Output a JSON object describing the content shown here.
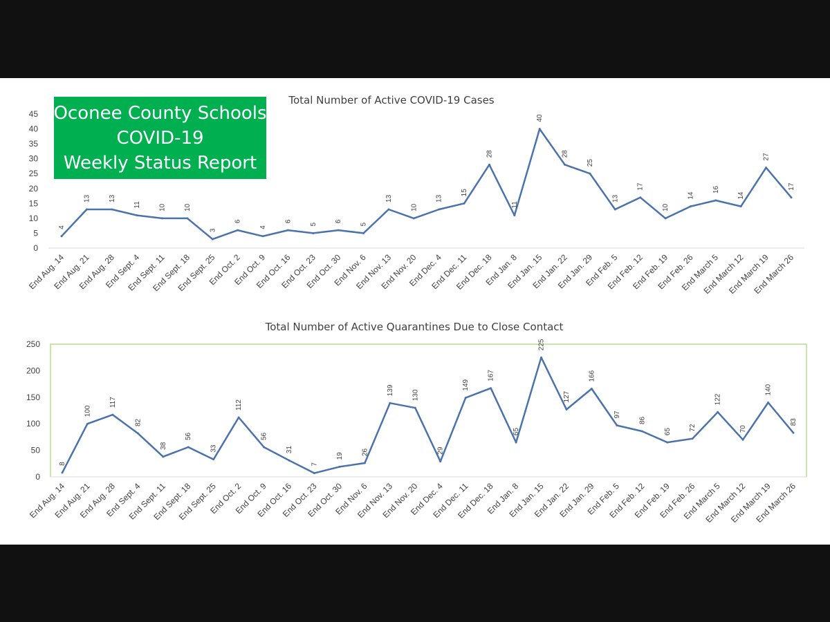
{
  "banner": {
    "line1": "Oconee County Schools",
    "line2": "COVID-19",
    "line3": "Weekly Status Report",
    "background": "#00b050",
    "text_color": "#ffffff"
  },
  "colors": {
    "line": "#4a72ad",
    "gridline": "#d9d9d9",
    "plot_border": "#92d050",
    "background_frame": "#111111"
  },
  "chart_data": [
    {
      "type": "line",
      "title": "Total Number of Active COVID-19 Cases",
      "categories": [
        "End Aug. 14",
        "End Aug. 21",
        "End Aug. 28",
        "End Sept. 4",
        "End Sept. 11",
        "End Sept. 18",
        "End Sept. 25",
        "End Oct. 2",
        "End Oct. 9",
        "End Oct. 16",
        "End Oct. 23",
        "End Oct. 30",
        "End Nov. 6",
        "End Nov. 13",
        "End Nov. 20",
        "End Dec. 4",
        "End Dec. 11",
        "End Dec. 18",
        "End Jan. 8",
        "End Jan. 15",
        "End Jan. 22",
        "End Jan. 29",
        "End Feb. 5",
        "End Feb. 12",
        "End Feb. 19",
        "End Feb. 26",
        "End March 5",
        "End March 12",
        "End March 19",
        "End March 26"
      ],
      "values": [
        4,
        13,
        13,
        11,
        10,
        10,
        3,
        6,
        4,
        6,
        5,
        6,
        5,
        13,
        10,
        13,
        15,
        28,
        11,
        40,
        28,
        25,
        13,
        17,
        10,
        14,
        16,
        14,
        27,
        17
      ],
      "yticks": [
        "0",
        "5",
        "10",
        "15",
        "20",
        "25",
        "30",
        "35",
        "40",
        "45"
      ],
      "ylim": [
        0,
        45
      ],
      "data_labels": true,
      "legend": "none",
      "grid": false
    },
    {
      "type": "line",
      "title": "Total Number of Active Quarantines Due to Close Contact",
      "categories": [
        "End Aug. 14",
        "End Aug. 21",
        "End Aug. 28",
        "End Sept. 4",
        "End Sept. 11",
        "End Sept. 18",
        "End Sept. 25",
        "End Oct. 2",
        "End Oct. 9",
        "End Oct. 16",
        "End Oct. 23",
        "End Oct. 30",
        "End Nov. 6",
        "End Nov. 13",
        "End Nov. 20",
        "End Dec. 4",
        "End Dec. 11",
        "End Dec. 18",
        "End Jan. 8",
        "End Jan. 15",
        "End Jan. 22",
        "End Jan. 29",
        "End Feb. 5",
        "End Feb. 12",
        "End Feb. 19",
        "End Feb. 26",
        "End March 5",
        "End March 12",
        "End March 19",
        "End March 26"
      ],
      "values": [
        8,
        100,
        117,
        82,
        38,
        56,
        33,
        112,
        56,
        31,
        7,
        19,
        26,
        139,
        130,
        29,
        149,
        167,
        65,
        225,
        127,
        166,
        97,
        86,
        65,
        72,
        122,
        70,
        140,
        83
      ],
      "yticks": [
        "0",
        "50",
        "100",
        "150",
        "200",
        "250"
      ],
      "ylim": [
        0,
        250
      ],
      "data_labels": true,
      "legend": "none",
      "grid": false
    }
  ]
}
